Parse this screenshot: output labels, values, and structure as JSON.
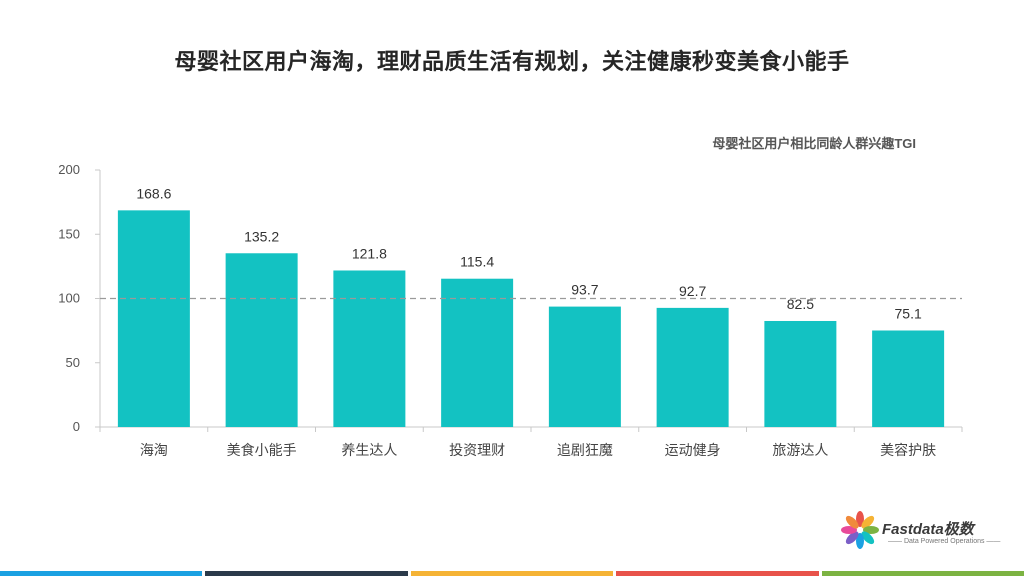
{
  "title": "母婴社区用户海淘，理财品质生活有规划，关注健康秒变美食小能手",
  "chart_data": {
    "type": "bar",
    "subtitle": "母婴社区用户相比同龄人群兴趣TGI",
    "categories": [
      "海淘",
      "美食小能手",
      "养生达人",
      "投资理财",
      "追剧狂魔",
      "运动健身",
      "旅游达人",
      "美容护肤"
    ],
    "values": [
      168.6,
      135.2,
      121.8,
      115.4,
      93.7,
      92.7,
      82.5,
      75.1
    ],
    "value_labels": [
      "168.6",
      "135.2",
      "121.8",
      "115.4",
      "93.7",
      "92.7",
      "82.5",
      "75.1"
    ],
    "ylim": [
      0,
      200
    ],
    "yticks": [
      "0",
      "50",
      "100",
      "150",
      "200"
    ],
    "reference_line": 100,
    "bar_color": "#13c2c2",
    "grid": false
  },
  "logo": {
    "name": "Fastdata极数",
    "tagline": "—— Data Powered Operations ——"
  },
  "bottom_bar_colors": [
    "#1ba1e2",
    "#2b3a4a",
    "#f5b335",
    "#e8534a",
    "#7cb342"
  ]
}
